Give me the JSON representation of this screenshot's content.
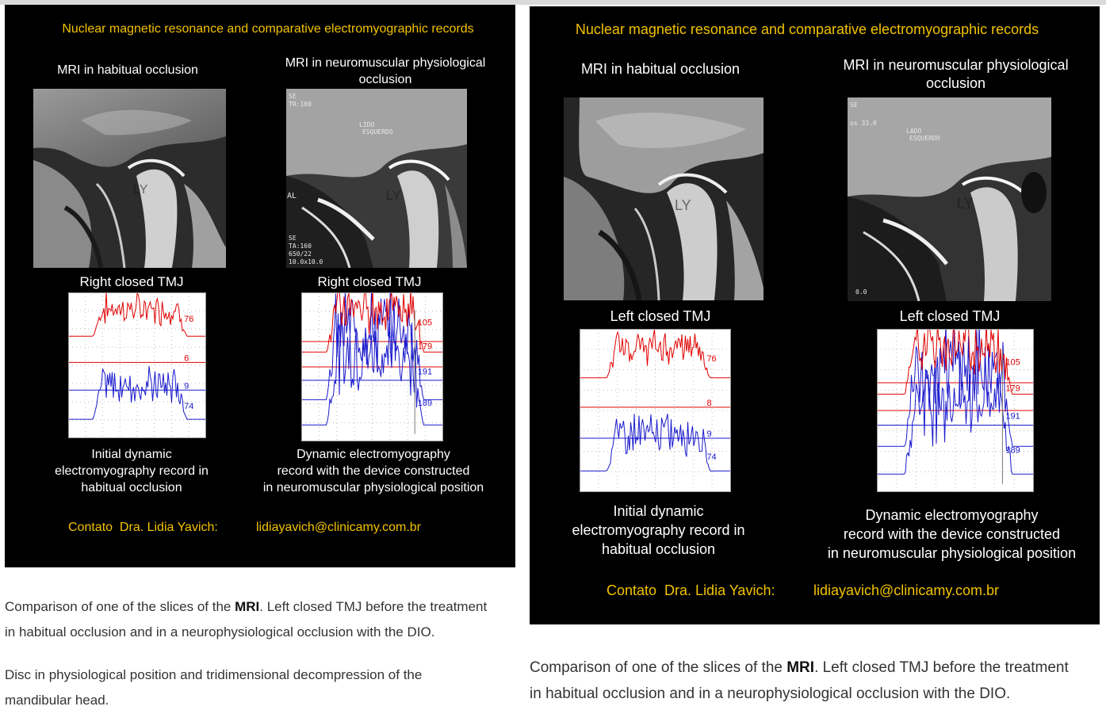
{
  "left_panel": {
    "title": "Nuclear magnetic resonance and comparative electromyographic records",
    "col1_title": "MRI in habitual occlusion",
    "col2_title_line1": "MRI in neuromuscular physiological",
    "col2_title_line2": "occlusion",
    "mri2_overlay": {
      "top_a": "SE",
      "top_b": "TR:160",
      "mid_label_1": "LIDO",
      "mid_label_2": "ESQUERDO",
      "side": "AL",
      "bottom_a": "SE",
      "bottom_b": "TA:160",
      "bottom_c": "650/22",
      "bottom_d": "10.0x10.0"
    },
    "ly_mark": "LY",
    "tmj_label_left": "Right closed TMJ",
    "tmj_label_right": "Right closed TMJ",
    "emg1_labels": [
      "76",
      "6",
      "9",
      "74"
    ],
    "emg2_labels": [
      "105",
      "179",
      "191",
      "189"
    ],
    "cap_left": [
      "Initial dynamic",
      "electromyography record in",
      "habitual occlusion"
    ],
    "cap_right": [
      "Dynamic electromyography",
      "record with the device constructed",
      "in neuromuscular physiological position"
    ],
    "contact": "Contato  Dra. Lidia Yavich:",
    "email": "lidiayavich@clinicamy.com.br"
  },
  "right_panel": {
    "title": "Nuclear magnetic resonance and comparative electromyographic records",
    "col1_title": "MRI in habitual occlusion",
    "col2_title_line1": "MRI in neuromuscular physiological",
    "col2_title_line2": "occlusion",
    "mri2_overlay": {
      "top_a": "SE",
      "top_b": "os 33.0",
      "mid_label_1": "LADO",
      "mid_label_2": "ESQUERDO",
      "bottom_a": "0.0"
    },
    "ly_mark": "LY",
    "tmj_label_left": "Left closed TMJ",
    "tmj_label_right": "Left closed TMJ",
    "emg1_labels": [
      "76",
      "8",
      "9",
      "74"
    ],
    "emg2_labels": [
      "105",
      "179",
      "191",
      "189"
    ],
    "cap_left": [
      "Initial dynamic",
      "electromyography record in",
      "habitual occlusion"
    ],
    "cap_right": [
      "Dynamic electromyography",
      "record with the device constructed",
      "in neuromuscular physiological position"
    ],
    "contact": "Contato  Dra. Lidia Yavich:",
    "email": "lidiayavich@clinicamy.com.br"
  },
  "captions": {
    "left_p1_prefix": "Comparison of one of the slices of the ",
    "left_p1_bold": "MRI",
    "left_p1_rest_line1": ". Left closed TMJ before the treatment",
    "left_p1_line2": "in habitual occlusion and in a neurophysiological occlusion with the DIO.",
    "left_p2_line1": "Disc in physiological position and tridimensional decompression of the",
    "left_p2_line2": "mandibular head.",
    "right_p1_prefix": "Comparison of one of the slices of the ",
    "right_p1_bold": "MRI",
    "right_p1_rest_line1": ". Left closed TMJ before the treatment",
    "right_p1_line2": "in habitual occlusion and in a neurophysiological occlusion with the DIO."
  },
  "colors": {
    "panel_bg": "#000000",
    "accent_yellow": "#f2c200",
    "emg_red": "#e00000",
    "emg_blue": "#1a1acc"
  }
}
